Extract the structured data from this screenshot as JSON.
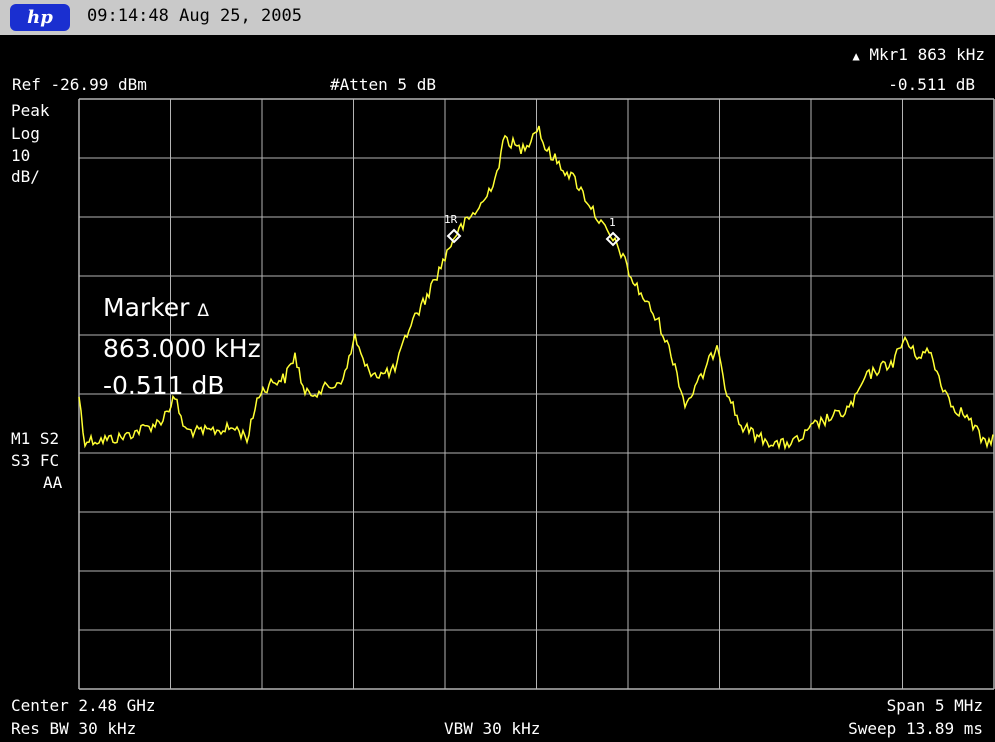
{
  "titlebar": {
    "logo": "hp",
    "datetime": "09:14:48  Aug 25, 2005"
  },
  "header": {
    "ref_level": "Ref -26.99 dBm",
    "attenuation": "#Atten 5 dB",
    "marker_label": "Mkr1  863 kHz",
    "marker_delta_symbol": "delta-icon",
    "marker_value": "-0.511 dB"
  },
  "left_panel": {
    "detector": "Peak",
    "scale_type": "Log",
    "scale_value": "10",
    "scale_unit": "dB/",
    "status_line1": "M1 S2",
    "status_line2": "S3 FC",
    "status_line3": "AA"
  },
  "marker_readout": {
    "title": "Marker",
    "frequency": "863.000 kHz",
    "amplitude": "-0.511 dB"
  },
  "markers": {
    "reference_label": "1R",
    "delta_label": "1"
  },
  "footer": {
    "center": "Center 2.48 GHz",
    "span": "Span 5 MHz",
    "res_bw": "Res BW 30 kHz",
    "vbw": "VBW 30 kHz",
    "sweep": "Sweep 13.89 ms"
  },
  "colors": {
    "trace": "#ffff33",
    "grid": "#b4b4b4",
    "background": "#000000",
    "titlebar": "#c9c9c9"
  }
}
